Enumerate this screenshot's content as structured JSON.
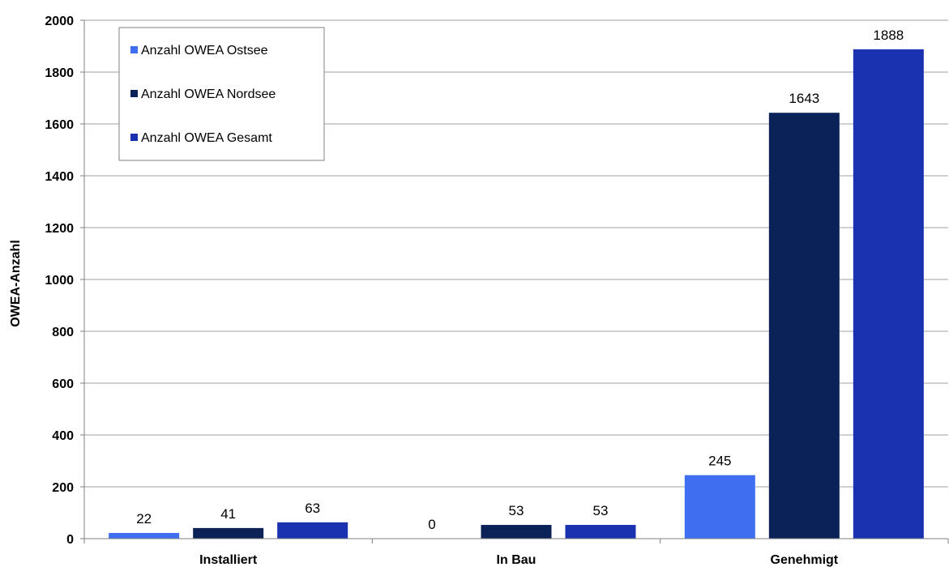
{
  "chart_data": {
    "type": "bar",
    "title": "",
    "xlabel": "",
    "ylabel": "OWEA-Anzahl",
    "categories": [
      "Installiert",
      "In Bau",
      "Genehmigt"
    ],
    "series": [
      {
        "name": "Anzahl OWEA Ostsee",
        "values": [
          22,
          0,
          245
        ],
        "value_labels": [
          "22",
          "0",
          "245"
        ],
        "color": "#3f6ff0"
      },
      {
        "name": "Anzahl OWEA Nordsee",
        "values": [
          41,
          53,
          1643
        ],
        "value_labels": [
          "41",
          "53",
          "1643"
        ],
        "color": "#0b2258"
      },
      {
        "name": "Anzahl OWEA Gesamt",
        "values": [
          63,
          53,
          1888
        ],
        "value_labels": [
          "63",
          "53",
          "1888"
        ],
        "color": "#1a31b0"
      }
    ],
    "ylim": [
      0,
      2000
    ],
    "yticks": [
      0,
      200,
      400,
      600,
      800,
      1000,
      1200,
      1400,
      1600,
      1800,
      2000
    ],
    "ytick_labels": [
      "0",
      "200",
      "400",
      "600",
      "800",
      "1000",
      "1200",
      "1400",
      "1600",
      "1800",
      "2000"
    ],
    "grid": true,
    "legend_position": "top-left"
  }
}
